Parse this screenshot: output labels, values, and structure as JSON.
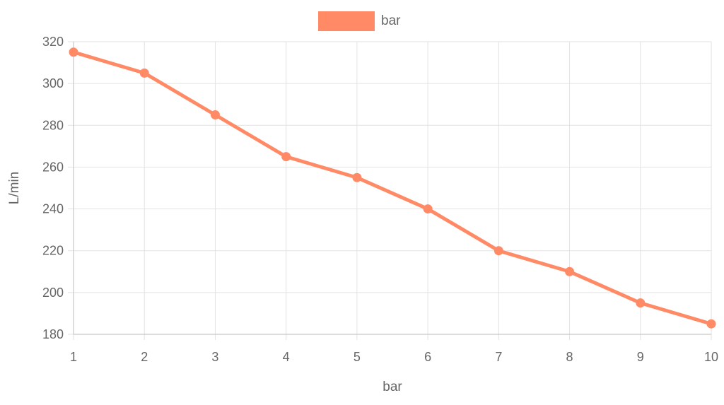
{
  "chart_data": {
    "type": "line",
    "x": [
      1,
      2,
      3,
      4,
      5,
      6,
      7,
      8,
      9,
      10
    ],
    "series": [
      {
        "name": "bar",
        "values": [
          315,
          305,
          285,
          265,
          255,
          240,
          220,
          210,
          195,
          185
        ],
        "color": "#ff8a65"
      }
    ],
    "xlabel": "bar",
    "ylabel": "L/min",
    "xlim": [
      1,
      10
    ],
    "ylim": [
      180,
      320
    ],
    "y_ticks": [
      180,
      200,
      220,
      240,
      260,
      280,
      300,
      320
    ],
    "grid": true,
    "legend_position": "top-center"
  }
}
